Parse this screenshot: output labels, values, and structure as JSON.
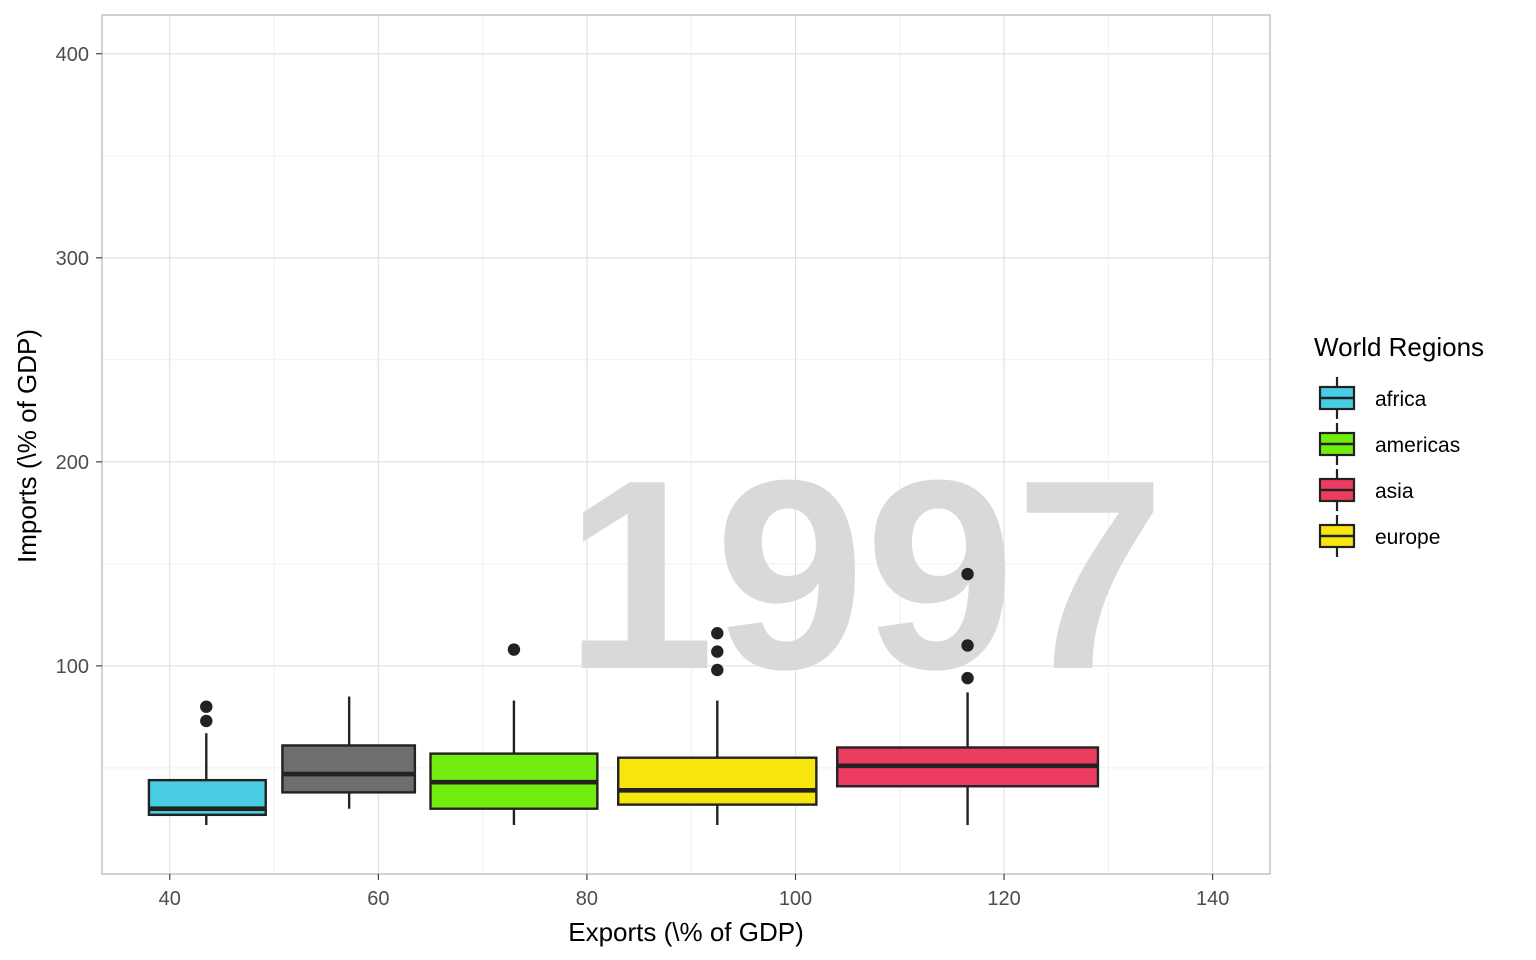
{
  "chart_data": {
    "type": "box",
    "watermark": "1997",
    "xlabel": "Exports (\\% of GDP)",
    "ylabel": "Imports (\\% of GDP)",
    "xlim": [
      33.5,
      145.5
    ],
    "ylim": [
      -2,
      419
    ],
    "x_ticks": [
      40,
      60,
      80,
      100,
      120,
      140
    ],
    "y_ticks": [
      100,
      200,
      300,
      400
    ],
    "grid": true,
    "legend": {
      "title": "World Regions",
      "position": "right",
      "entries": [
        {
          "label": "africa",
          "color": "#48CDE2"
        },
        {
          "label": "americas",
          "color": "#71EC0E"
        },
        {
          "label": "asia",
          "color": "#EC3C60"
        },
        {
          "label": "europe",
          "color": "#F6E60C"
        }
      ]
    },
    "boxes": [
      {
        "group": "africa",
        "color": "#48CDE2",
        "x_center": 43.5,
        "x_range": [
          38.0,
          49.2
        ],
        "q1": 27,
        "median": 30,
        "q3": 44,
        "whisker_low": 22,
        "whisker_high": 67,
        "outliers": [
          73,
          80
        ]
      },
      {
        "group": "",
        "color": "#6E6E6E",
        "x_center": 57.2,
        "x_range": [
          50.8,
          63.5
        ],
        "q1": 38,
        "median": 47,
        "q3": 61,
        "whisker_low": 30,
        "whisker_high": 85,
        "outliers": []
      },
      {
        "group": "americas",
        "color": "#71EC0E",
        "x_center": 73.0,
        "x_range": [
          65.0,
          81.0
        ],
        "q1": 30,
        "median": 43,
        "q3": 57,
        "whisker_low": 22,
        "whisker_high": 83,
        "outliers": [
          108
        ]
      },
      {
        "group": "europe",
        "color": "#F6E60C",
        "x_center": 92.5,
        "x_range": [
          83.0,
          102.0
        ],
        "q1": 32,
        "median": 39,
        "q3": 55,
        "whisker_low": 22,
        "whisker_high": 83,
        "outliers": [
          98,
          107,
          116
        ]
      },
      {
        "group": "asia",
        "color": "#EC3C60",
        "x_center": 116.5,
        "x_range": [
          104.0,
          129.0
        ],
        "q1": 41,
        "median": 51,
        "q3": 60,
        "whisker_low": 22,
        "whisker_high": 87,
        "outliers": [
          94,
          110,
          145
        ]
      }
    ]
  }
}
